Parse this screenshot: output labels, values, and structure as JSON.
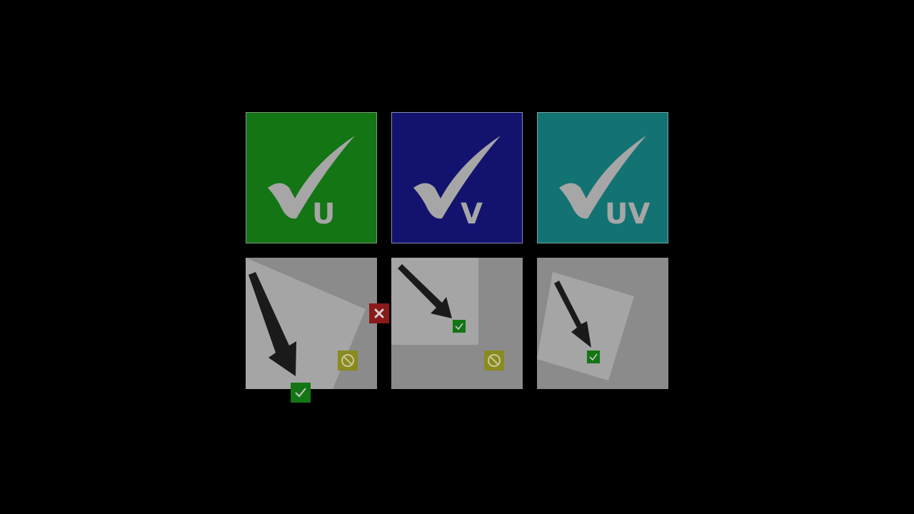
{
  "tiles": {
    "mode_u": {
      "label": "U",
      "color": "#137514",
      "icon": "checkmark-icon"
    },
    "mode_v": {
      "label": "V",
      "color": "#13136f",
      "icon": "checkmark-icon"
    },
    "mode_uv": {
      "label": "UV",
      "color": "#137373",
      "icon": "checkmark-icon"
    }
  },
  "scenes": [
    {
      "icon": "arrow-down-right-icon",
      "badges": [
        "error-x-icon",
        "forbidden-icon",
        "check-badge-icon"
      ]
    },
    {
      "icon": "arrow-down-right-icon",
      "badges": [
        "check-badge-icon",
        "forbidden-icon"
      ]
    },
    {
      "icon": "arrow-down-right-icon",
      "badges": [
        "check-badge-icon"
      ]
    }
  ],
  "colors": {
    "background": "#000000",
    "scene_bg": "#8b8b8b",
    "panel_light": "#a5a5a5",
    "check_gray": "#a6a6a6",
    "arrow": "#1a1a1a",
    "badge_green": "#137514",
    "badge_red": "#8a1a1a",
    "badge_yellow": "#8a8a1e"
  }
}
